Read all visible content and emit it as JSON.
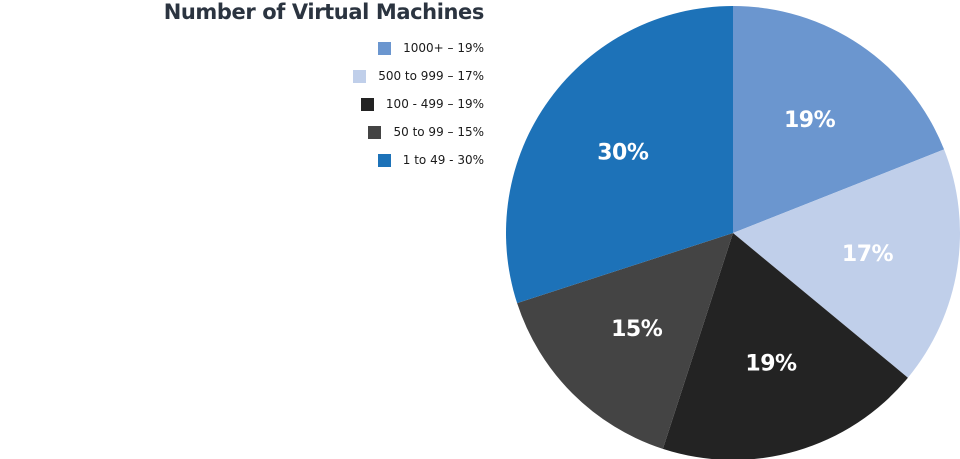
{
  "chart_data": {
    "type": "pie",
    "title": "Number of Virtual Machines",
    "legend_position": "top-left",
    "slices": [
      {
        "label": "1000+",
        "legend": "1000+ – 19%",
        "value": 19,
        "display": "19%",
        "color": "#6b96cf"
      },
      {
        "label": "500 to 999",
        "legend": "500 to 999 – 17%",
        "value": 17,
        "display": "17%",
        "color": "#c0cfea"
      },
      {
        "label": "100 - 499",
        "legend": "100 - 499 – 19%",
        "value": 19,
        "display": "19%",
        "color": "#232323"
      },
      {
        "label": "50 to 99",
        "legend": "50 to 99 – 15%",
        "value": 15,
        "display": "15%",
        "color": "#444444"
      },
      {
        "label": "1 to 49",
        "legend": "1 to 49 - 30%",
        "value": 30,
        "display": "30%",
        "color": "#1d72b8"
      }
    ]
  }
}
